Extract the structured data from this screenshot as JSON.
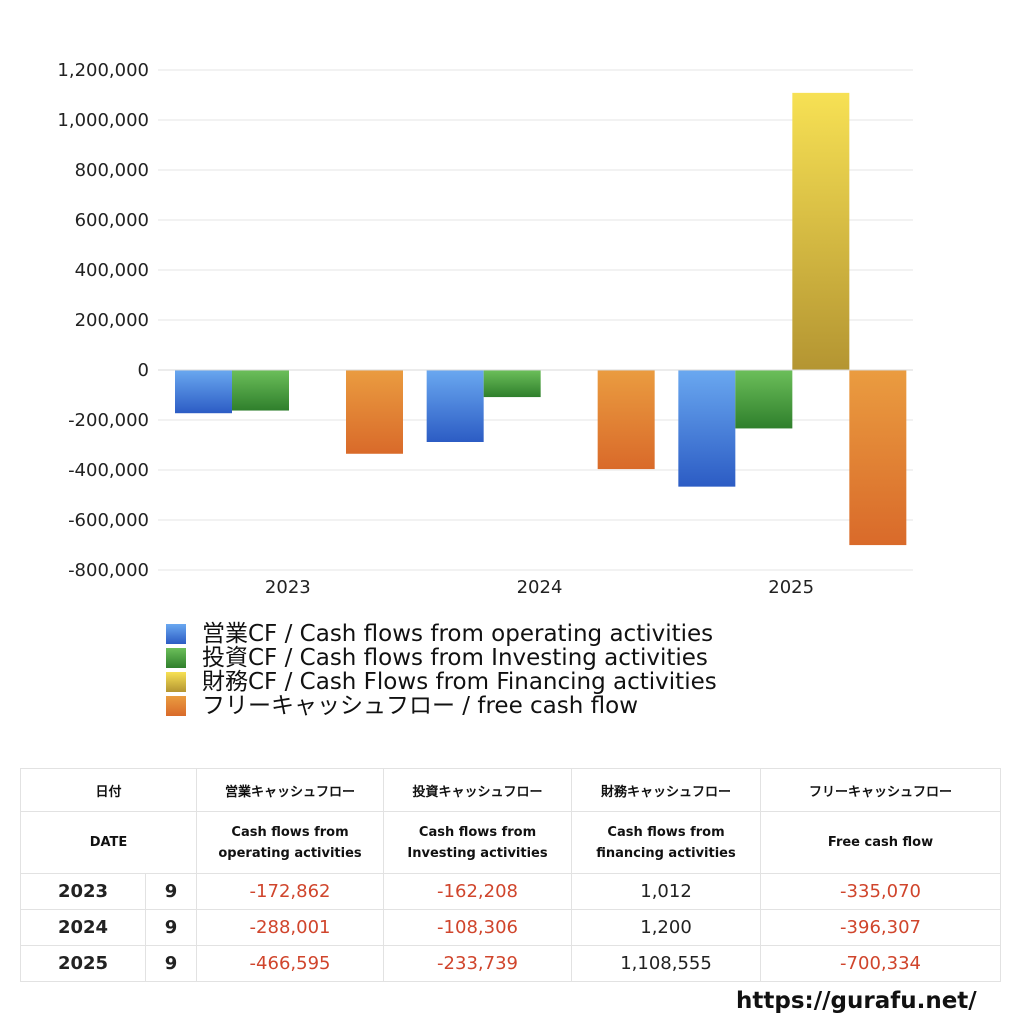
{
  "chart_data": {
    "type": "bar",
    "categories": [
      "2023",
      "2024",
      "2025"
    ],
    "ylim": [
      -800000,
      1200000
    ],
    "yticks": [
      1200000,
      1000000,
      800000,
      600000,
      400000,
      200000,
      0,
      -200000,
      -400000,
      -600000,
      -800000
    ],
    "ytick_labels": [
      "1,200,000",
      "1,000,000",
      "800,000",
      "600,000",
      "400,000",
      "200,000",
      "0",
      "-200,000",
      "-400,000",
      "-600,000",
      "-800,000"
    ],
    "grid": true,
    "legend_position": "bottom",
    "series": [
      {
        "name": "営業CF / Cash flows from operating activities",
        "values": [
          -172862,
          -288001,
          -466595
        ],
        "color": "#3f7fe0",
        "color_top": "#6aa8f0",
        "color_bottom": "#2c5cc4"
      },
      {
        "name": "投資CF / Cash flows from Investing activities",
        "values": [
          -162208,
          -108306,
          -233739
        ],
        "color": "#3f9a3a",
        "color_top": "#6cbf5a",
        "color_bottom": "#2f7f2c"
      },
      {
        "name": "財務CF / Cash Flows from Financing activities",
        "values": [
          1012,
          1200,
          1108555
        ],
        "color": "#d8bd3a",
        "color_top": "#f7e154",
        "color_bottom": "#b49532"
      },
      {
        "name": "フリーキャッシュフロー / free cash flow",
        "values": [
          -335070,
          -396307,
          -700334
        ],
        "color": "#e07a30",
        "color_top": "#ea9c40",
        "color_bottom": "#d96a2a"
      }
    ]
  },
  "table": {
    "headers_jp": [
      "日付",
      "営業キャッシュフロー",
      "投資キャッシュフロー",
      "財務キャッシュフロー",
      "フリーキャッシュフロー"
    ],
    "headers_en": [
      [
        "DATE",
        ""
      ],
      [
        "Cash flows from",
        "operating activities"
      ],
      [
        "Cash flows from",
        "Investing activities"
      ],
      [
        "Cash flows from",
        "financing activities"
      ],
      [
        "Free cash flow",
        ""
      ]
    ],
    "rows": [
      {
        "year": "2023",
        "month": "9",
        "op": "-172,862",
        "inv": "-162,208",
        "fin": "1,012",
        "free": "-335,070"
      },
      {
        "year": "2024",
        "month": "9",
        "op": "-288,001",
        "inv": "-108,306",
        "fin": "1,200",
        "free": "-396,307"
      },
      {
        "year": "2025",
        "month": "9",
        "op": "-466,595",
        "inv": "-233,739",
        "fin": "1,108,555",
        "free": "-700,334"
      }
    ]
  },
  "footer": {
    "site": "https://gurafu.net/"
  }
}
